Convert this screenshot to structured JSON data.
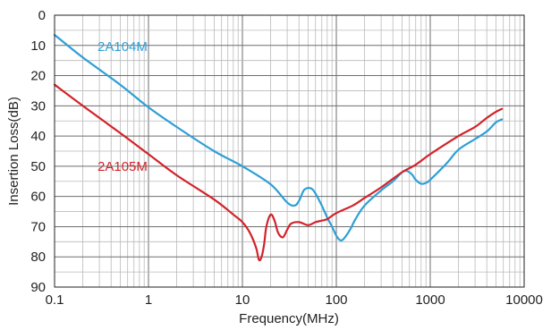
{
  "chart_data": {
    "type": "line",
    "title": "",
    "xlabel": "Frequency(MHz)",
    "ylabel": "Insertion Loss(dB)",
    "x_scale": "log",
    "xlim": [
      0.1,
      10000
    ],
    "ylim": [
      0,
      90
    ],
    "y_inverted": true,
    "grid": true,
    "x_ticks": [
      "0.1",
      "1",
      "10",
      "100",
      "1000",
      "10000"
    ],
    "y_ticks": [
      "0",
      "10",
      "20",
      "30",
      "40",
      "50",
      "60",
      "70",
      "80",
      "90"
    ],
    "series": [
      {
        "name": "2A104M",
        "color": "#2e9fd6",
        "points": [
          [
            0.1,
            6.5
          ],
          [
            0.2,
            14
          ],
          [
            0.5,
            23
          ],
          [
            1,
            30.5
          ],
          [
            2,
            37
          ],
          [
            5,
            45
          ],
          [
            10,
            50
          ],
          [
            20,
            56
          ],
          [
            30,
            62
          ],
          [
            36,
            63
          ],
          [
            40,
            61.5
          ],
          [
            45,
            58
          ],
          [
            50,
            57.2
          ],
          [
            55,
            57.5
          ],
          [
            60,
            59
          ],
          [
            70,
            63
          ],
          [
            80,
            67
          ],
          [
            90,
            70
          ],
          [
            100,
            73
          ],
          [
            110,
            74.5
          ],
          [
            120,
            74
          ],
          [
            140,
            71
          ],
          [
            160,
            67.5
          ],
          [
            200,
            63
          ],
          [
            300,
            58
          ],
          [
            400,
            55
          ],
          [
            500,
            52
          ],
          [
            550,
            51.5
          ],
          [
            600,
            52
          ],
          [
            650,
            53
          ],
          [
            700,
            54.5
          ],
          [
            800,
            55.8
          ],
          [
            900,
            55.5
          ],
          [
            1000,
            54.5
          ],
          [
            1500,
            49
          ],
          [
            2000,
            44.5
          ],
          [
            3000,
            41
          ],
          [
            4000,
            38.5
          ],
          [
            5000,
            35.5
          ],
          [
            5800,
            34.5
          ]
        ]
      },
      {
        "name": "2A105M",
        "color": "#d2232a",
        "points": [
          [
            0.1,
            23
          ],
          [
            0.2,
            30
          ],
          [
            0.5,
            39
          ],
          [
            1,
            46
          ],
          [
            2,
            53
          ],
          [
            5,
            61
          ],
          [
            8,
            66
          ],
          [
            10,
            68.5
          ],
          [
            12,
            72
          ],
          [
            14,
            77
          ],
          [
            15,
            81
          ],
          [
            16,
            80
          ],
          [
            17,
            76
          ],
          [
            18,
            70
          ],
          [
            20,
            66
          ],
          [
            22,
            68
          ],
          [
            24,
            72
          ],
          [
            27,
            73.5
          ],
          [
            30,
            71
          ],
          [
            33,
            69
          ],
          [
            40,
            68.5
          ],
          [
            50,
            69.5
          ],
          [
            60,
            68.5
          ],
          [
            70,
            68
          ],
          [
            80,
            67.5
          ],
          [
            100,
            65.5
          ],
          [
            150,
            63
          ],
          [
            200,
            60.5
          ],
          [
            300,
            57
          ],
          [
            500,
            52
          ],
          [
            700,
            49.5
          ],
          [
            1000,
            46
          ],
          [
            2000,
            40
          ],
          [
            3000,
            37
          ],
          [
            4000,
            34
          ],
          [
            5000,
            32
          ],
          [
            5800,
            31
          ]
        ]
      }
    ]
  },
  "labels": {
    "series_0": "2A104M",
    "series_1": "2A105M"
  }
}
